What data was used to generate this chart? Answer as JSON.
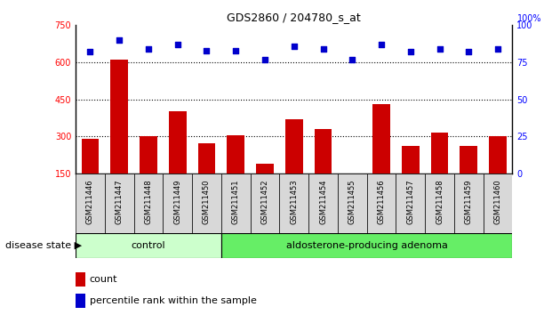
{
  "title": "GDS2860 / 204780_s_at",
  "samples": [
    "GSM211446",
    "GSM211447",
    "GSM211448",
    "GSM211449",
    "GSM211450",
    "GSM211451",
    "GSM211452",
    "GSM211453",
    "GSM211454",
    "GSM211455",
    "GSM211456",
    "GSM211457",
    "GSM211458",
    "GSM211459",
    "GSM211460"
  ],
  "counts": [
    290,
    610,
    300,
    400,
    270,
    305,
    190,
    370,
    330,
    145,
    430,
    260,
    315,
    260,
    300
  ],
  "percentiles": [
    82,
    90,
    84,
    87,
    83,
    83,
    77,
    86,
    84,
    77,
    87,
    82,
    84,
    82,
    84
  ],
  "group_labels": [
    "control",
    "aldosterone-producing adenoma"
  ],
  "group_colors": [
    "#ccffcc",
    "#66ee66"
  ],
  "bar_color": "#cc0000",
  "scatter_color": "#0000cc",
  "ylim_left": [
    150,
    750
  ],
  "ylim_right": [
    0,
    100
  ],
  "yticks_left": [
    150,
    300,
    450,
    600,
    750
  ],
  "yticks_right": [
    0,
    25,
    50,
    75,
    100
  ],
  "hlines": [
    300,
    450,
    600
  ],
  "legend_count_label": "count",
  "legend_percentile_label": "percentile rank within the sample",
  "disease_state_label": "disease state",
  "n_control": 5,
  "n_total": 15
}
